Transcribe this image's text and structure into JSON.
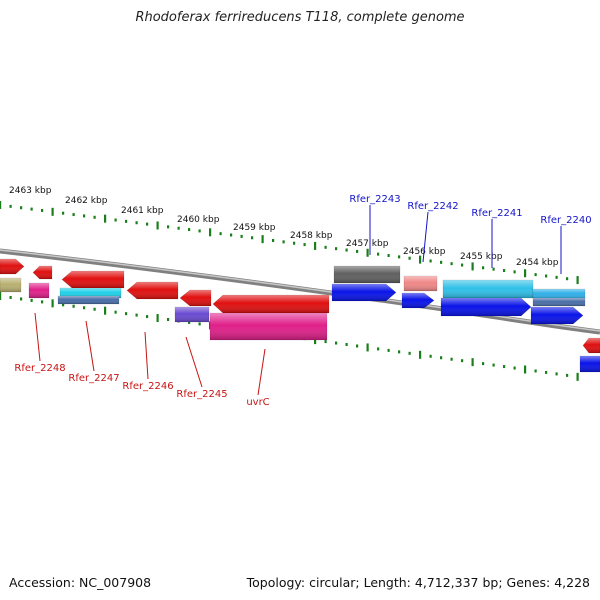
{
  "title": "Rhodoferax ferrireducens T118, complete genome",
  "accession": "Accession: NC_007908",
  "topology": "Topology: circular; Length: 4,712,337 bp; Genes: 4,228",
  "colors": {
    "tick": "#1a7f1a",
    "backbone": "#808080",
    "top_gene_label": "#1414c8",
    "bottom_gene_label": "#c81414"
  },
  "scale_labels": [
    "2463 kbp",
    "2462 kbp",
    "2461 kbp",
    "2460 kbp",
    "2459 kbp",
    "2458 kbp",
    "2457 kbp",
    "2456 kbp",
    "2455 kbp",
    "2454 kbp"
  ],
  "top_gene_labels": [
    "Rfer_2243",
    "Rfer_2242",
    "Rfer_2241",
    "Rfer_2240"
  ],
  "bottom_gene_labels": [
    "Rfer_2248",
    "Rfer_2247",
    "Rfer_2246",
    "Rfer_2245",
    "uvrC"
  ],
  "genes": [
    {
      "color": "#e01010",
      "strand": "reverse"
    },
    {
      "color": "#b8b070",
      "strand": "reverse"
    },
    {
      "color": "#e01010",
      "strand": "reverse"
    },
    {
      "color": "#e0208a",
      "strand": "reverse"
    },
    {
      "color": "#e01010",
      "strand": "reverse"
    },
    {
      "color": "#20d0e8",
      "strand": "reverse"
    },
    {
      "color": "#4a6fa8",
      "strand": "reverse"
    },
    {
      "color": "#e01010",
      "strand": "reverse"
    },
    {
      "color": "#e01010",
      "strand": "reverse"
    },
    {
      "color": "#6a4ad0",
      "strand": "reverse"
    },
    {
      "color": "#e01010",
      "strand": "reverse"
    },
    {
      "color": "#e0208a",
      "strand": "reverse"
    },
    {
      "color": "#606060",
      "strand": "forward"
    },
    {
      "color": "#0a14e8",
      "strand": "forward"
    },
    {
      "color": "#f08888",
      "strand": "forward"
    },
    {
      "color": "#0a14e8",
      "strand": "forward"
    },
    {
      "color": "#30c0e8",
      "strand": "forward"
    },
    {
      "color": "#0a14e8",
      "strand": "forward"
    },
    {
      "color": "#30b0e8",
      "strand": "forward"
    },
    {
      "color": "#4a6fa8",
      "strand": "forward"
    },
    {
      "color": "#0a14e8",
      "strand": "forward"
    },
    {
      "color": "#e01010",
      "strand": "reverse"
    },
    {
      "color": "#0a14e8",
      "strand": "forward"
    }
  ]
}
